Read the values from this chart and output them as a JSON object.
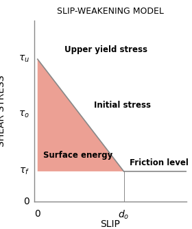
{
  "title": "SLIP-WEAKENING MODEL",
  "xlabel": "SLIP",
  "ylabel": "SHEAR STRESS",
  "tau_u": 0.85,
  "tau_o": 0.52,
  "tau_f": 0.18,
  "d_o": 0.58,
  "x_max": 1.0,
  "y_max": 1.0,
  "fill_color": "#E8897A",
  "fill_alpha": 0.8,
  "line_color": "#888888",
  "label_upper_yield": "Upper yield stress",
  "label_initial": "Initial stress",
  "label_surface": "Surface energy",
  "label_friction": "Friction level",
  "title_fontsize": 9,
  "axis_label_fontsize": 9,
  "tick_label_fontsize": 10,
  "annotation_fontsize": 8.5
}
